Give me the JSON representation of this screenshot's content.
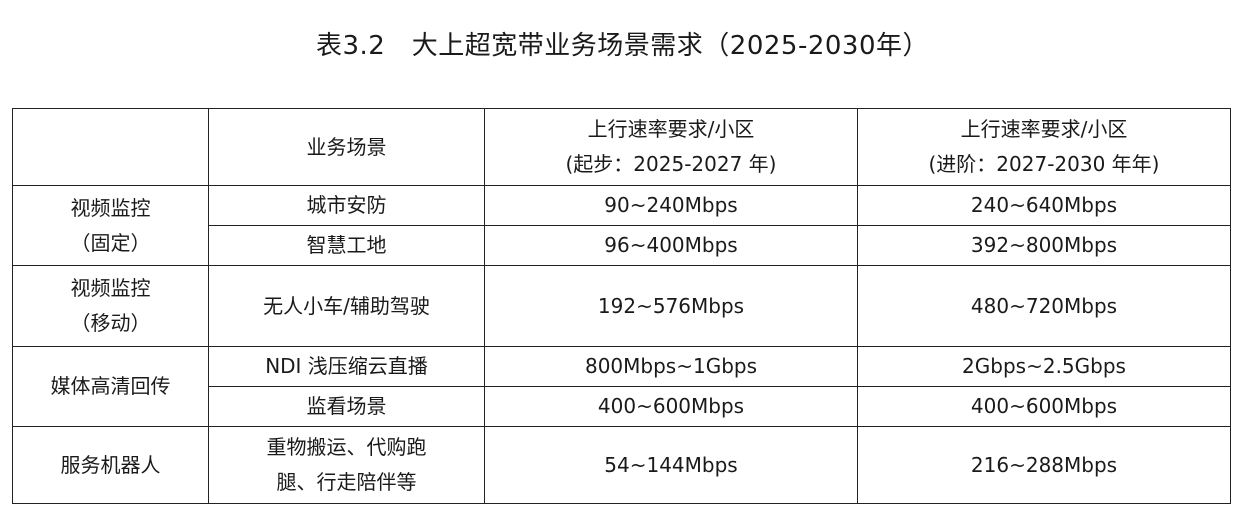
{
  "caption": "表3.2　大上超宽带业务场景需求（2025-2030年）",
  "header": {
    "scenario": "业务场景",
    "basic_line1": "上行速率要求/小区",
    "basic_line2": "(起步：2025-2027 年)",
    "advanced_line1": "上行速率要求/小区",
    "advanced_line2": "(进阶：2027-2030 年年)"
  },
  "groups": {
    "fixed": {
      "line1": "视频监控",
      "line2": "（固定）"
    },
    "mobile": {
      "line1": "视频监控",
      "line2": "（移动）"
    },
    "media": "媒体高清回传",
    "robot": "服务机器人"
  },
  "rows": {
    "city_security": {
      "scenario": "城市安防",
      "basic": "90~240Mbps",
      "advanced": "240~640Mbps"
    },
    "smart_site": {
      "scenario": "智慧工地",
      "basic": "96~400Mbps",
      "advanced": "392~800Mbps"
    },
    "unmanned_car": {
      "scenario": "无人小车/辅助驾驶",
      "basic": "192~576Mbps",
      "advanced": "480~720Mbps"
    },
    "ndi": {
      "scenario": "NDI 浅压缩云直播",
      "basic": "800Mbps~1Gbps",
      "advanced": "2Gbps~2.5Gbps"
    },
    "monitor_view": {
      "scenario": "监看场景",
      "basic": "400~600Mbps",
      "advanced": "400~600Mbps"
    },
    "robot": {
      "scenario_line1": "重物搬运、代购跑",
      "scenario_line2": "腿、行走陪伴等",
      "basic": "54~144Mbps",
      "advanced": "216~288Mbps"
    }
  }
}
